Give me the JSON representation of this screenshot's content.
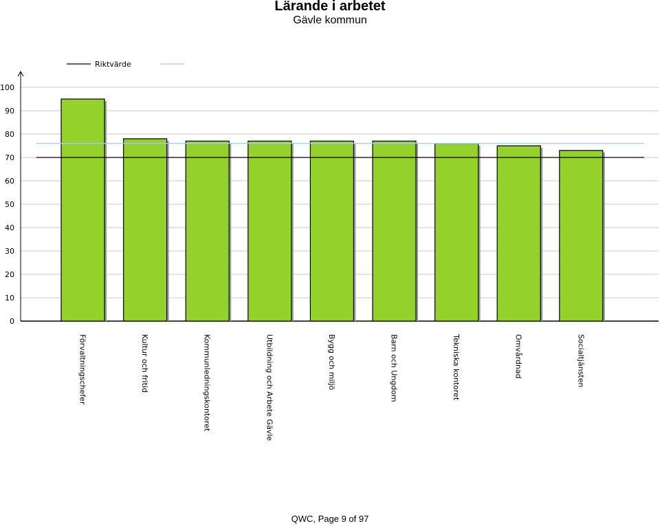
{
  "page": {
    "title": "Lärande i arbetet",
    "subtitle": "Gävle kommun",
    "footer": "QWC, Page 9 of 97"
  },
  "chart_data": {
    "type": "bar",
    "categories": [
      "Förvaltningschefer",
      "Kultur och fritid",
      "Kommunledningskontoret",
      "Utbildning och Arbete Gävle",
      "Bygg och miljö",
      "Barn och Ungdom",
      "Tekniska kontoret",
      "Omvårdnad",
      "Socialtjänsten"
    ],
    "values": [
      95,
      78,
      77,
      77,
      77,
      77,
      76,
      75,
      73
    ],
    "ylim": [
      0,
      100
    ],
    "yticks": [
      "0",
      "10",
      "20",
      "30",
      "40",
      "50",
      "60",
      "70",
      "80",
      "90",
      "100"
    ],
    "grid": true,
    "reference_lines": [
      {
        "name": "Riktvärde",
        "value": 70,
        "color": "#000000"
      },
      {
        "name": "",
        "value": 76,
        "color": "#a9cde8"
      }
    ],
    "legend_position": "top-left",
    "colors": {
      "bar": "#94d12a",
      "bar_edge": "#000000",
      "bar_shadow": "#9a9a9a",
      "grid": "#c8c8c8"
    }
  }
}
